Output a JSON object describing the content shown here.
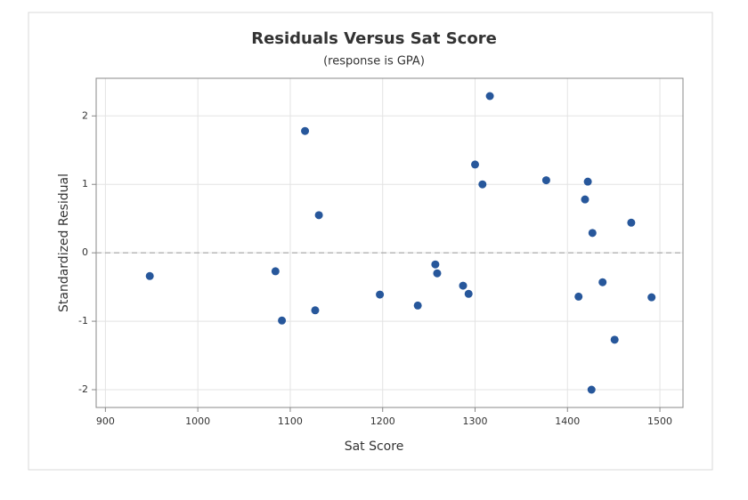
{
  "chart_data": {
    "type": "scatter",
    "title": "Residuals Versus Sat Score",
    "subtitle": "(response is GPA)",
    "x_label": "Sat Score",
    "y_label": "Standardized Residual",
    "xlim": [
      890,
      1525
    ],
    "xticks": [
      900,
      1000,
      1100,
      1200,
      1300,
      1400,
      1500
    ],
    "ylim": [
      -2.26,
      2.55
    ],
    "yticks": [
      -2,
      -1,
      0,
      1,
      2
    ],
    "grid": true,
    "reference_line": 0,
    "series": [
      {
        "color": "#27579b",
        "x": [
          948,
          1084,
          1091,
          1116,
          1127,
          1131,
          1197,
          1238,
          1257,
          1259,
          1287,
          1293,
          1300,
          1308,
          1316,
          1377,
          1412,
          1419,
          1422,
          1427,
          1426,
          1438,
          1451,
          1469,
          1491
        ],
        "values": [
          -0.34,
          -0.27,
          -0.99,
          1.78,
          -0.84,
          0.55,
          -0.61,
          -0.77,
          -0.17,
          -0.3,
          -0.48,
          -0.6,
          1.29,
          1.0,
          2.29,
          1.06,
          -0.64,
          0.78,
          1.04,
          0.29,
          -2.0,
          -0.43,
          -1.27,
          0.44,
          -0.65
        ]
      }
    ]
  }
}
